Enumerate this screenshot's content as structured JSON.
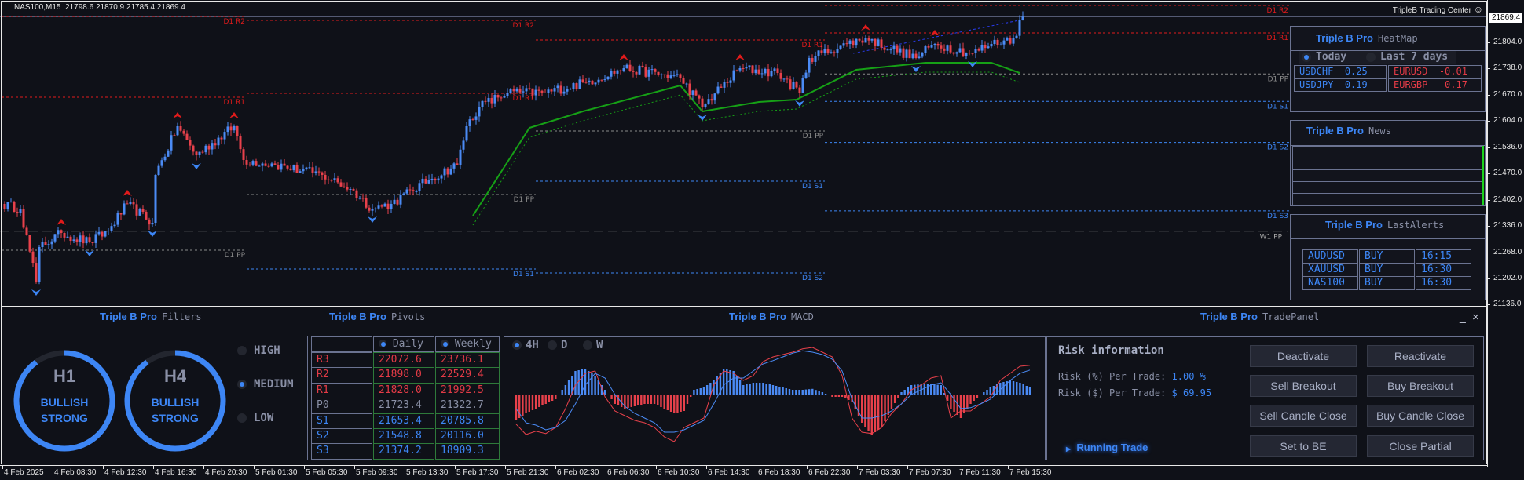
{
  "header": {
    "symbol_line": "NAS100,M15  21798.6 21870.9 21785.4 21869.4",
    "brand": "TripleB Trading Center",
    "brand_icon": "smiley-icon",
    "current_price": "21869.4"
  },
  "chart": {
    "price_axis": [
      "21804.0",
      "21738.0",
      "21670.0",
      "21604.0",
      "21536.0",
      "21470.0",
      "21402.0",
      "21336.0",
      "21268.0",
      "21202.0",
      "21136.0"
    ],
    "time_axis": [
      "4 Feb 2025",
      "4 Feb 08:30",
      "4 Feb 12:30",
      "4 Feb 16:30",
      "4 Feb 20:30",
      "5 Feb 01:30",
      "5 Feb 05:30",
      "5 Feb 09:30",
      "5 Feb 13:30",
      "5 Feb 17:30",
      "5 Feb 21:30",
      "6 Feb 02:30",
      "6 Feb 06:30",
      "6 Feb 10:30",
      "6 Feb 14:30",
      "6 Feb 18:30",
      "6 Feb 22:30",
      "7 Feb 03:30",
      "7 Feb 07:30",
      "7 Feb 11:30",
      "7 Feb 15:30"
    ],
    "price_path": [
      [
        0,
        21392
      ],
      [
        6,
        21380
      ],
      [
        11,
        21194
      ],
      [
        12,
        21282
      ],
      [
        19,
        21318
      ],
      [
        28,
        21294
      ],
      [
        34,
        21324
      ],
      [
        40,
        21392
      ],
      [
        48,
        21344
      ],
      [
        49,
        21466
      ],
      [
        56,
        21590
      ],
      [
        62,
        21516
      ],
      [
        74,
        21590
      ],
      [
        77,
        21504
      ],
      [
        87,
        21492
      ],
      [
        102,
        21466
      ],
      [
        111,
        21430
      ],
      [
        118,
        21380
      ],
      [
        124,
        21392
      ],
      [
        136,
        21454
      ],
      [
        145,
        21492
      ],
      [
        148,
        21590
      ],
      [
        152,
        21640
      ],
      [
        161,
        21676
      ],
      [
        173,
        21676
      ],
      [
        186,
        21702
      ],
      [
        198,
        21738
      ],
      [
        216,
        21714
      ],
      [
        223,
        21640
      ],
      [
        235,
        21738
      ],
      [
        247,
        21726
      ],
      [
        254,
        21676
      ],
      [
        257,
        21764
      ],
      [
        269,
        21800
      ],
      [
        275,
        21814
      ],
      [
        291,
        21764
      ],
      [
        297,
        21800
      ],
      [
        309,
        21776
      ],
      [
        315,
        21800
      ],
      [
        322,
        21814
      ],
      [
        325,
        21869.4
      ]
    ],
    "trail_path": [
      [
        150,
        21362
      ],
      [
        168,
        21586
      ],
      [
        185,
        21628
      ],
      [
        216,
        21694
      ],
      [
        223,
        21628
      ],
      [
        241,
        21652
      ],
      [
        253,
        21658
      ],
      [
        272,
        21734
      ],
      [
        294,
        21752
      ],
      [
        315,
        21752
      ],
      [
        324,
        21726
      ]
    ],
    "pivot_segments": [
      [
        {
          "label": "D1 R2",
          "price": 21870
        },
        {
          "label": "D1 R1",
          "price": 21664
        },
        {
          "label": "D1 PP",
          "price": 21274
        }
      ],
      [
        {
          "label": "D1 R2",
          "price": 21860
        },
        {
          "label": "D1 R1",
          "price": 21674
        },
        {
          "label": "D1 PP",
          "price": 21416
        },
        {
          "label": "D1 S1",
          "price": 21226
        }
      ],
      [
        {
          "label": "D1 R1",
          "price": 21810
        },
        {
          "label": "D1 PP",
          "price": 21578
        },
        {
          "label": "D1 S1",
          "price": 21450
        },
        {
          "label": "D1 S2",
          "price": 21216
        }
      ],
      [
        {
          "label": "D1 R2",
          "price": 21898
        },
        {
          "label": "D1 R1",
          "price": 21828
        },
        {
          "label": "D1 PP",
          "price": 21723.4
        },
        {
          "label": "D1 S1",
          "price": 21653.4
        },
        {
          "label": "D1 S2",
          "price": 21548.8
        },
        {
          "label": "D1 S3",
          "price": 21374.2
        }
      ]
    ],
    "weekly_pivot": {
      "label": "W1 PP",
      "price": 21322.7
    },
    "colors": {
      "bull": "#4b8bf5",
      "bear": "#e8414b",
      "resistance": "#e01b1b",
      "support": "#3d86f5",
      "pivot": "#8a8a8a",
      "trail": "#16a016"
    }
  },
  "heatmap": {
    "brand": "Triple B Pro",
    "title": "HeatMap",
    "options": [
      {
        "label": "Today",
        "selected": true
      },
      {
        "label": "Last 7 days",
        "selected": false
      }
    ],
    "left": [
      {
        "pair": "USDCHF",
        "value": "0.25"
      },
      {
        "pair": "USDJPY",
        "value": "0.19"
      }
    ],
    "right": [
      {
        "pair": "EURUSD",
        "value": "-0.01"
      },
      {
        "pair": "EURGBP",
        "value": "-0.17"
      }
    ]
  },
  "news": {
    "brand": "Triple B Pro",
    "title": "News"
  },
  "alerts": {
    "brand": "Triple B Pro",
    "title": "LastAlerts",
    "rows": [
      [
        "AUDUSD",
        "BUY",
        "16:15"
      ],
      [
        "XAUUSD",
        "BUY",
        "16:30"
      ],
      [
        "NAS100",
        "BUY",
        "16:30"
      ]
    ]
  },
  "filters": {
    "brand": "Triple B Pro",
    "title": "Filters",
    "gauges": [
      {
        "tf": "H1",
        "line1": "BULLISH",
        "line2": "STRONG",
        "strength": 0.9
      },
      {
        "tf": "H4",
        "line1": "BULLISH",
        "line2": "STRONG",
        "strength": 0.9
      }
    ],
    "levels": [
      {
        "label": "HIGH",
        "selected": false
      },
      {
        "label": "MEDIUM",
        "selected": true
      },
      {
        "label": "LOW",
        "selected": false
      }
    ]
  },
  "pivots": {
    "brand": "Triple B Pro",
    "title": "Pivots",
    "columns": [
      "Daily",
      "Weekly"
    ],
    "rows": [
      [
        "R3",
        "22072.6",
        "23736.1"
      ],
      [
        "R2",
        "21898.0",
        "22529.4"
      ],
      [
        "R1",
        "21828.0",
        "21992.5"
      ],
      [
        "P0",
        "21723.4",
        "21322.7"
      ],
      [
        "S1",
        "21653.4",
        "20785.8"
      ],
      [
        "S2",
        "21548.8",
        "20116.0"
      ],
      [
        "S3",
        "21374.2",
        "18909.3"
      ]
    ]
  },
  "macd": {
    "brand": "Triple B Pro",
    "title": "MACD",
    "timeframes": [
      {
        "label": "4H",
        "selected": true
      },
      {
        "label": "D",
        "selected": false
      },
      {
        "label": "W",
        "selected": false
      }
    ],
    "histogram": [
      -0.55,
      -0.4,
      -0.3,
      -0.2,
      -0.1,
      0.2,
      0.5,
      0.55,
      0.4,
      0.1,
      -0.2,
      -0.3,
      -0.25,
      -0.2,
      -0.2,
      -0.3,
      -0.4,
      -0.35,
      0.1,
      0.15,
      0.3,
      0.55,
      0.5,
      0.2,
      0.25,
      0.25,
      0.2,
      0.15,
      0.1,
      0.1,
      0.12,
      0.05,
      -0.05,
      -0.05,
      -0.15,
      -0.6,
      -0.85,
      -0.7,
      -0.3,
      0.05,
      0.2,
      0.22,
      0.22,
      0.2,
      -0.3,
      -0.5,
      -0.2,
      0.0,
      0.15,
      0.25,
      0.3,
      0.25,
      0.15
    ],
    "red_line": [
      -0.63,
      -0.85,
      -0.78,
      -0.83,
      -0.7,
      -0.3,
      0.2,
      0.45,
      0.5,
      -0.05,
      -0.35,
      -0.45,
      -0.55,
      -0.6,
      -0.7,
      -0.9,
      -1.0,
      -0.7,
      -0.6,
      -0.5,
      0.2,
      0.5,
      0.45,
      0.3,
      0.4,
      0.7,
      0.8,
      0.85,
      0.9,
      0.97,
      1.0,
      0.9,
      0.8,
      0.4,
      -0.5,
      -0.8,
      -0.83,
      -0.7,
      -0.4,
      -0.2,
      0.1,
      0.2,
      0.35,
      0.4,
      -0.5,
      -0.35,
      -0.35,
      -0.2,
      -0.05,
      0.3,
      0.45,
      0.6,
      0.62
    ],
    "blue_line": [
      -0.3,
      -0.6,
      -0.65,
      -0.75,
      -0.7,
      -0.55,
      -0.2,
      0.2,
      0.45,
      0.35,
      0.0,
      -0.25,
      -0.4,
      -0.5,
      -0.6,
      -0.8,
      -0.8,
      -0.75,
      -0.65,
      -0.55,
      -0.2,
      0.2,
      0.35,
      0.35,
      0.5,
      0.65,
      0.72,
      0.8,
      0.88,
      0.93,
      0.9,
      0.85,
      0.75,
      0.5,
      -0.1,
      -0.5,
      -0.5,
      -0.45,
      -0.35,
      -0.2,
      0.0,
      0.1,
      0.2,
      0.25,
      0.0,
      -0.3,
      -0.28,
      -0.2,
      -0.1,
      0.1,
      0.3,
      0.45,
      0.52
    ]
  },
  "trade": {
    "brand": "Triple B Pro",
    "title": "TradePanel",
    "minimize": "_",
    "close": "×",
    "risk_title": "Risk information",
    "risk_pct_label": "Risk (%) Per Trade:",
    "risk_pct": "1.00 %",
    "risk_usd_label": "Risk ($) Per Trade:",
    "risk_usd": "$ 69.95",
    "running": "Running Trade",
    "buttons": [
      "Deactivate",
      "Reactivate",
      "Sell Breakout",
      "Buy Breakout",
      "Sell Candle Close",
      "Buy Candle Close",
      "Set to BE",
      "Close Partial"
    ]
  }
}
